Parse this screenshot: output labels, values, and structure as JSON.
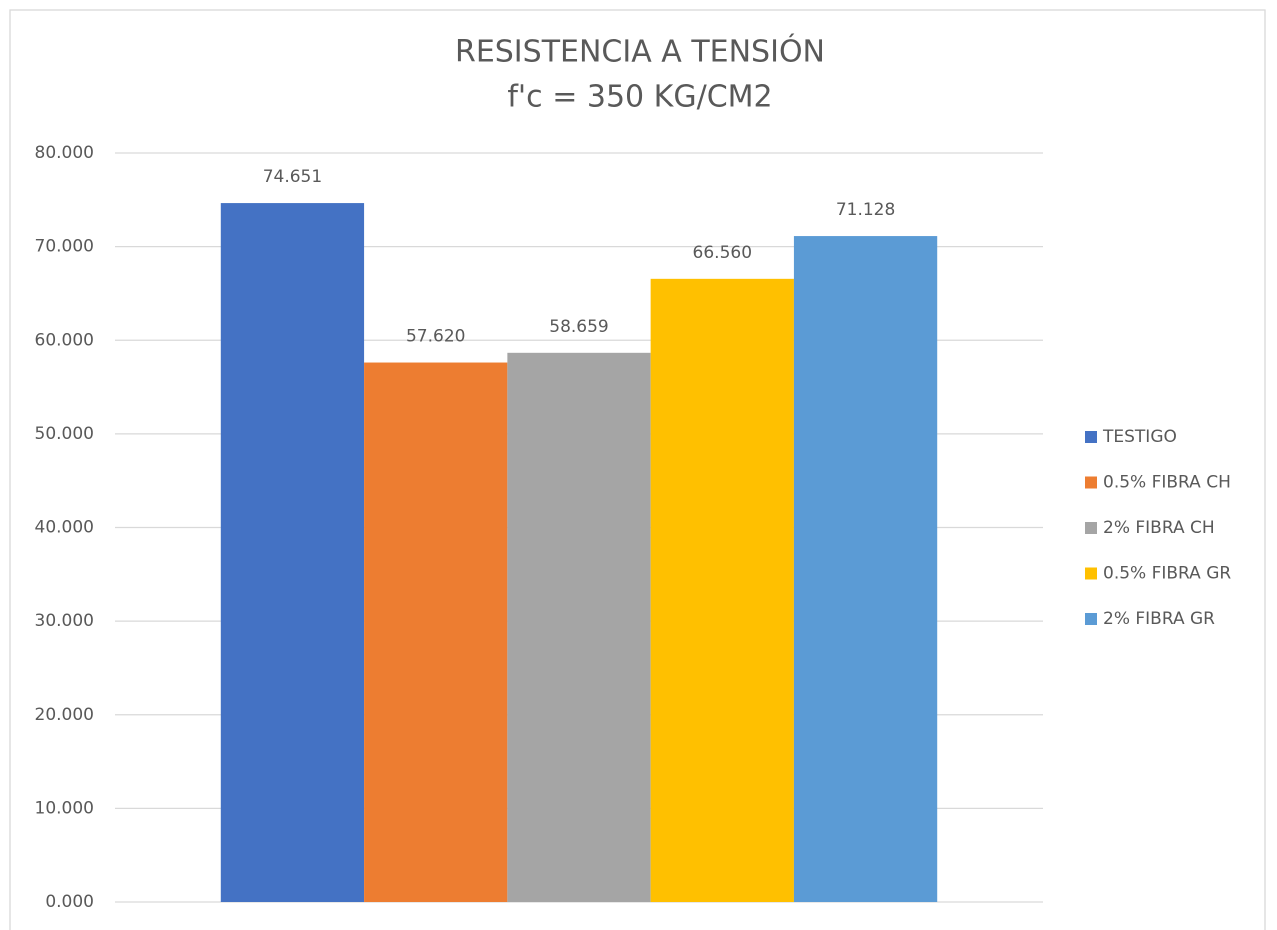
{
  "chart_data": {
    "type": "bar",
    "title": [
      "RESISTENCIA A TENSIÓN",
      "f'c = 350 KG/CM2"
    ],
    "categories": [
      null
    ],
    "series": [
      {
        "name": "TESTIGO",
        "color": "#4472c4",
        "values": [
          74.651
        ],
        "value_labels": [
          "74.651"
        ]
      },
      {
        "name": "0.5% FIBRA CH",
        "color": "#ed7d31",
        "values": [
          57.62
        ],
        "value_labels": [
          "57.620"
        ]
      },
      {
        "name": "2% FIBRA CH",
        "color": "#a5a5a5",
        "values": [
          58.659
        ],
        "value_labels": [
          "58.659"
        ]
      },
      {
        "name": "0.5% FIBRA GR",
        "color": "#ffc000",
        "values": [
          66.56
        ],
        "value_labels": [
          "66.560"
        ]
      },
      {
        "name": "2% FIBRA GR",
        "color": "#5b9bd5",
        "values": [
          71.128
        ],
        "value_labels": [
          "71.128"
        ]
      }
    ],
    "ylim": [
      0,
      80
    ],
    "yticks": [
      {
        "value": 0,
        "label": "0.000"
      },
      {
        "value": 10,
        "label": "10.000"
      },
      {
        "value": 20,
        "label": "20.000"
      },
      {
        "value": 30,
        "label": "30.000"
      },
      {
        "value": 40,
        "label": "40.000"
      },
      {
        "value": 50,
        "label": "50.000"
      },
      {
        "value": 60,
        "label": "60.000"
      },
      {
        "value": 70,
        "label": "70.000"
      },
      {
        "value": 80,
        "label": "80.000"
      }
    ],
    "grid": true,
    "legend": "right"
  }
}
